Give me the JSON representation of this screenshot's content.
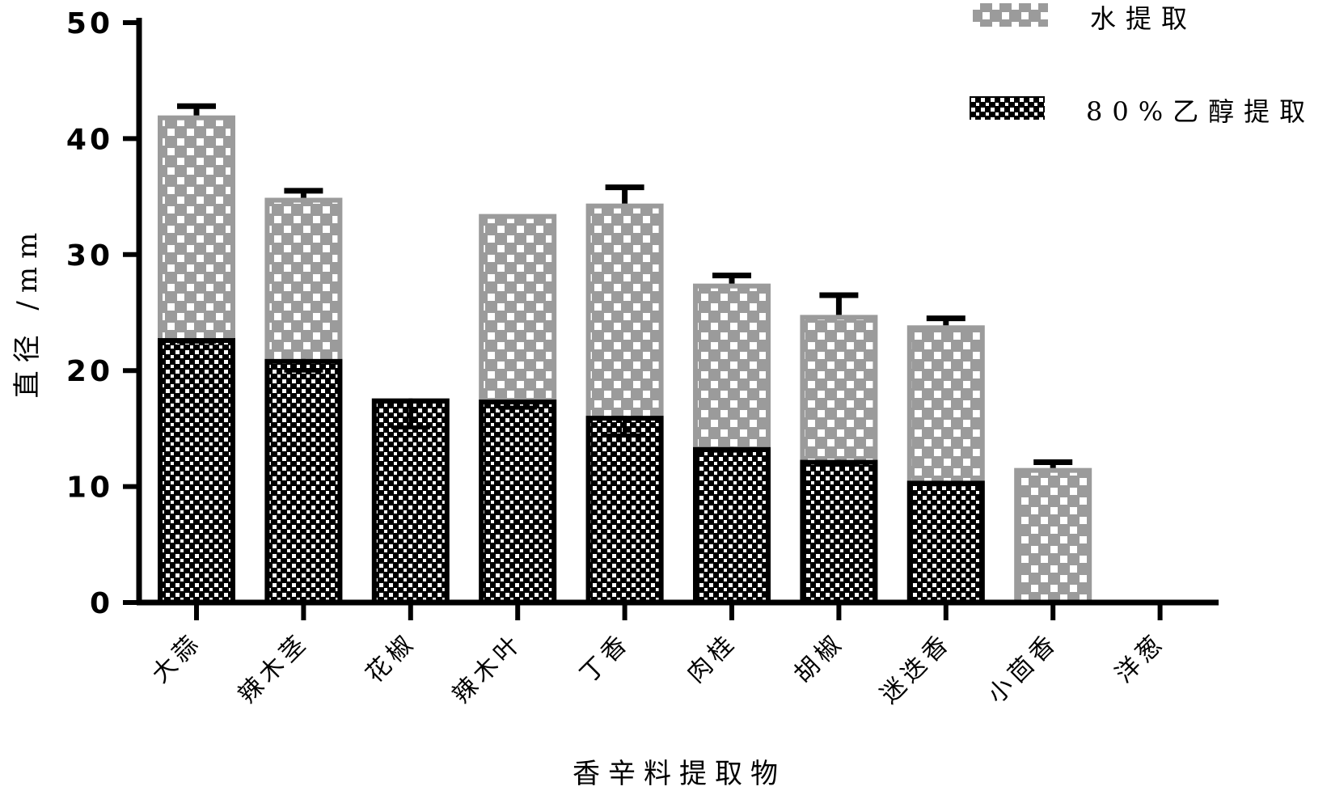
{
  "chart_data": {
    "type": "bar",
    "subtype": "overlapping grouped bars with error bars",
    "xlabel": "香辛料提取物",
    "ylabel": "直径 /mm",
    "ylim": [
      0,
      50
    ],
    "yticks": [
      "0",
      "10",
      "20",
      "30",
      "40",
      "50"
    ],
    "grid": false,
    "legend_position": "top-right",
    "categories": [
      "大蒜",
      "辣木茎",
      "花椒",
      "辣木叶",
      "丁香",
      "肉桂",
      "胡椒",
      "迷迭香",
      "小茴香",
      "洋葱"
    ],
    "series": [
      {
        "name": "水提取",
        "color": "#9b9b9b",
        "pattern": "gray-white checker",
        "values": [
          42.0,
          34.9,
          0,
          33.5,
          34.4,
          27.5,
          24.8,
          23.9,
          11.6,
          0
        ],
        "errors": [
          0.8,
          0.6,
          0,
          0,
          1.4,
          0.7,
          1.7,
          0.6,
          0.5,
          0
        ]
      },
      {
        "name": "80%乙醇提取",
        "color": "#000000",
        "pattern": "black-white fine checker",
        "values": [
          22.8,
          21.0,
          17.6,
          17.5,
          16.1,
          13.4,
          12.3,
          10.5,
          0,
          0
        ],
        "errors": [
          0.3,
          1.0,
          2.5,
          0.7,
          1.7,
          0.3,
          0.3,
          0.3,
          0,
          0
        ]
      }
    ]
  }
}
